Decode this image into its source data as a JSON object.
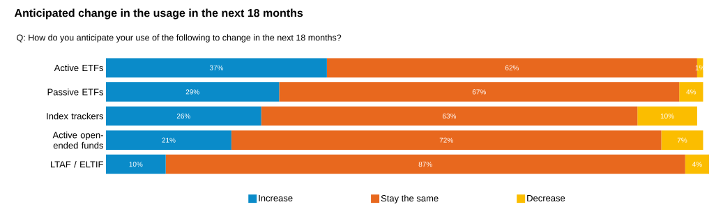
{
  "chart_data": {
    "type": "bar",
    "orientation": "horizontal",
    "stacked": true,
    "title": "Anticipated change in the usage in the next 18 months",
    "subtitle": "Q: How do you anticipate your use of the following to change in the next 18 months?",
    "categories": [
      "Active ETFs",
      "Passive ETFs",
      "Index trackers",
      "Active open-ended funds",
      "LTAF / ELTIF"
    ],
    "series": [
      {
        "name": "Increase",
        "color": "#0a8bc9",
        "values": [
          37,
          29,
          26,
          21,
          10
        ],
        "value_labels": [
          "37%",
          "29%",
          "26%",
          "21%",
          "10%"
        ]
      },
      {
        "name": "Stay the same",
        "color": "#e8681e",
        "values": [
          62,
          67,
          63,
          72,
          87
        ],
        "value_labels": [
          "62%",
          "67%",
          "63%",
          "72%",
          "87%"
        ]
      },
      {
        "name": "Decrease",
        "color": "#fbbd00",
        "values": [
          1,
          4,
          10,
          7,
          4
        ],
        "value_labels": [
          "1%",
          "4%",
          "10%",
          "7%",
          "4%"
        ]
      }
    ],
    "tick_labels": "y",
    "legend": "bottom"
  }
}
